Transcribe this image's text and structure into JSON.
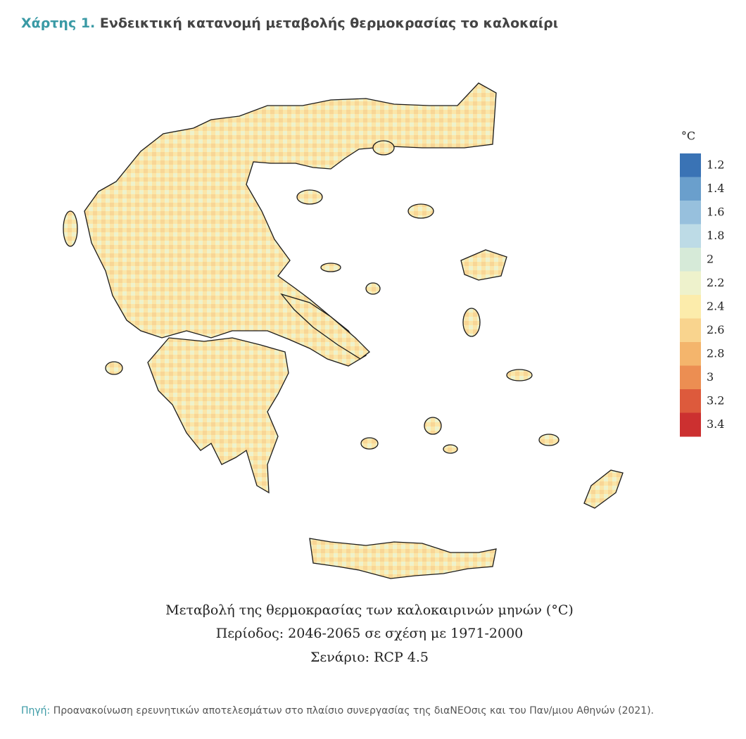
{
  "header": {
    "label": "Χάρτης 1.",
    "title": "Ενδεικτική κατανομή μεταβολής θερμοκρασίας το καλοκαίρι"
  },
  "legend": {
    "title": "°C",
    "values": [
      1.2,
      1.4,
      1.6,
      1.8,
      2,
      2.2,
      2.4,
      2.6,
      2.8,
      3,
      3.2,
      3.4
    ],
    "colors": [
      "#3a73b5",
      "#6a9fcc",
      "#97c0dd",
      "#bddbe6",
      "#d6ead8",
      "#eef2cc",
      "#fcecab",
      "#f9d48e",
      "#f4b56c",
      "#ec8e52",
      "#dd5a3c",
      "#cc3030"
    ]
  },
  "caption": [
    "Μεταβολή της θερμοκρασίας των καλοκαιρινών μηνών (°C)",
    "Περίοδος: 2046-2065 σε σχέση με 1971-2000",
    "Σενάριο: RCP 4.5"
  ],
  "source": {
    "label": "Πηγή:",
    "text": "Προανακοίνωση ερευνητικών αποτελεσμάτων στο πλαίσιο συνεργασίας της διαΝΕΟσις και του Παν/μιου Αθηνών (2021)."
  }
}
